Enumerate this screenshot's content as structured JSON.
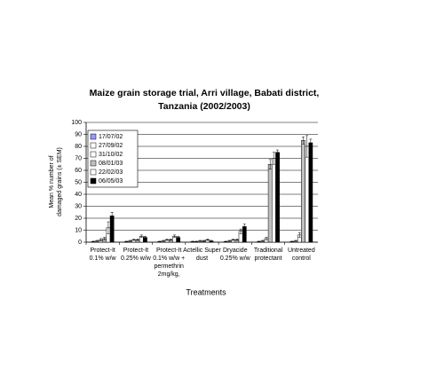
{
  "chart_data": {
    "type": "bar",
    "title": [
      "Maize grain storage trial, Arri village, Babati district,",
      "Tanzania (2002/2003)"
    ],
    "ylabel": [
      "Mean % number of",
      "damaged grains (± SEM)"
    ],
    "xlabel": "Treatments",
    "categories": [
      [
        "Protect-It",
        "0.1% w/w"
      ],
      [
        "Protect-It",
        "0.25% w/w"
      ],
      [
        "Protect-It",
        "0.1% w/w +",
        "permethrin",
        "2mg/kg,"
      ],
      [
        "Actellic Super",
        "dust"
      ],
      [
        "Dryacide",
        "0.25% w/w"
      ],
      [
        "Traditional",
        "protectant"
      ],
      [
        "Untreated",
        "control"
      ]
    ],
    "series": [
      {
        "name": "17/07/02",
        "color": "#9999ff",
        "values": [
          0.5,
          0.5,
          0.5,
          0.5,
          0.5,
          0.5,
          0.5
        ],
        "errors": [
          0.3,
          0.3,
          0.3,
          0.3,
          0.3,
          0.3,
          0.3
        ]
      },
      {
        "name": "27/09/02",
        "color": "#ffffff",
        "values": [
          1,
          1,
          1,
          0.5,
          1,
          1,
          1
        ],
        "errors": [
          0.5,
          0.5,
          0.5,
          0.3,
          0.5,
          0.5,
          0.5
        ]
      },
      {
        "name": "31/10/02",
        "color": "#ffffff",
        "values": [
          2,
          2,
          2,
          1,
          2,
          3,
          6
        ],
        "errors": [
          1,
          0.5,
          0.5,
          0.5,
          0.5,
          1,
          2
        ]
      },
      {
        "name": "08/01/03",
        "color": "#c0c0c0",
        "values": [
          3,
          2,
          2,
          1,
          2,
          65,
          85
        ],
        "errors": [
          1,
          0.5,
          0.5,
          0.5,
          0.5,
          4,
          3
        ]
      },
      {
        "name": "22/02/03",
        "color": "#ffffff",
        "values": [
          12,
          5,
          5,
          2,
          9,
          70,
          80
        ],
        "errors": [
          5,
          1,
          1,
          0.5,
          2,
          5,
          9
        ]
      },
      {
        "name": "06/05/03",
        "color": "#000000",
        "values": [
          22,
          4,
          4,
          1,
          13,
          75,
          83
        ],
        "errors": [
          3,
          1,
          1,
          0.5,
          2,
          2,
          3
        ]
      }
    ],
    "ylim": [
      0,
      100
    ],
    "yticks": [
      0,
      10,
      20,
      30,
      40,
      50,
      60,
      70,
      80,
      90,
      100
    ],
    "grid": true,
    "legend": "top-left"
  }
}
